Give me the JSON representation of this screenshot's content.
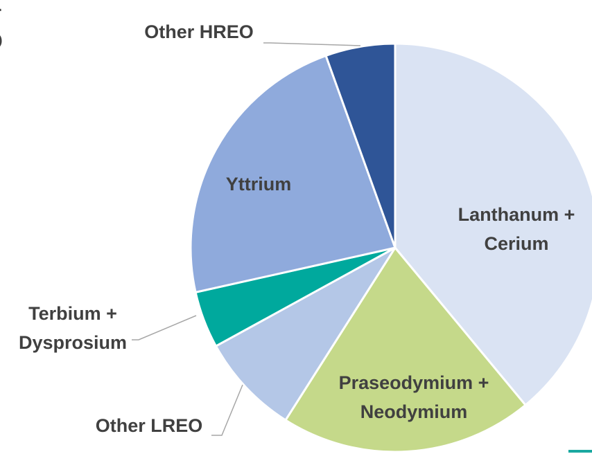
{
  "chart_data": {
    "type": "pie",
    "title_lines": [
      "r",
      "O"
    ],
    "categories": [
      "Lanthanum + Cerium",
      "Praseodymium + Neodymium",
      "Other LREO",
      "Terbium + Dysprosium",
      "Yttrium",
      "Other HREO"
    ],
    "values": [
      39,
      20,
      8,
      4.5,
      23,
      5.5
    ],
    "colors": [
      "#dae3f3",
      "#c5d98a",
      "#b4c7e7",
      "#00a99d",
      "#8faadc",
      "#2f5597"
    ]
  }
}
